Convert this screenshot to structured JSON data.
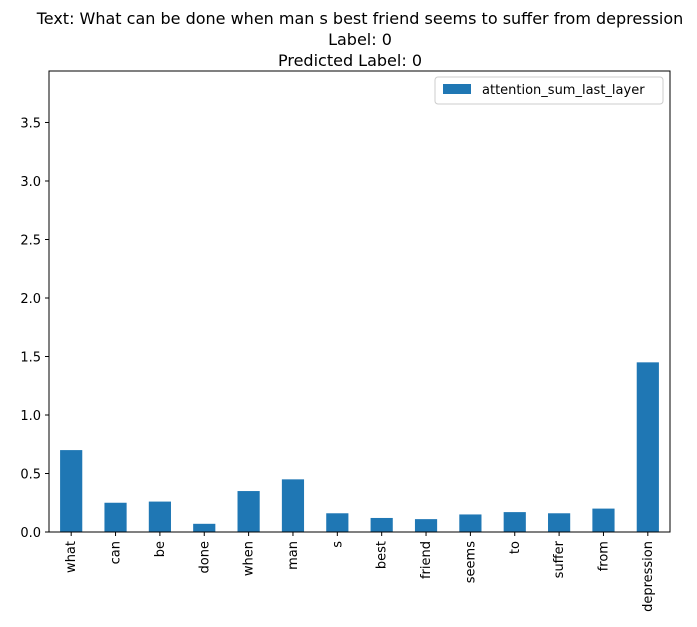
{
  "chart_data": {
    "type": "bar",
    "title_lines": [
      "Text: What can be done when man s best friend seems to suffer from depression",
      "Label: 0",
      "Predicted Label: 0"
    ],
    "xlabel": "",
    "ylabel": "",
    "categories": [
      "what",
      "can",
      "be",
      "done",
      "when",
      "man",
      "s",
      "best",
      "friend",
      "seems",
      "to",
      "suffer",
      "from",
      "depression"
    ],
    "series": [
      {
        "name": "attention_sum_last_layer",
        "color": "#1f77b4",
        "values": [
          0.7,
          0.25,
          0.26,
          0.07,
          0.35,
          0.45,
          0.16,
          0.12,
          0.11,
          0.15,
          0.17,
          0.16,
          0.2,
          1.45
        ]
      }
    ],
    "ylim": [
      0,
      3.94
    ],
    "yticks": [
      "0.0",
      "0.5",
      "1.0",
      "1.5",
      "2.0",
      "2.5",
      "3.0",
      "3.5"
    ],
    "legend_position": "top-right",
    "grid": false
  }
}
